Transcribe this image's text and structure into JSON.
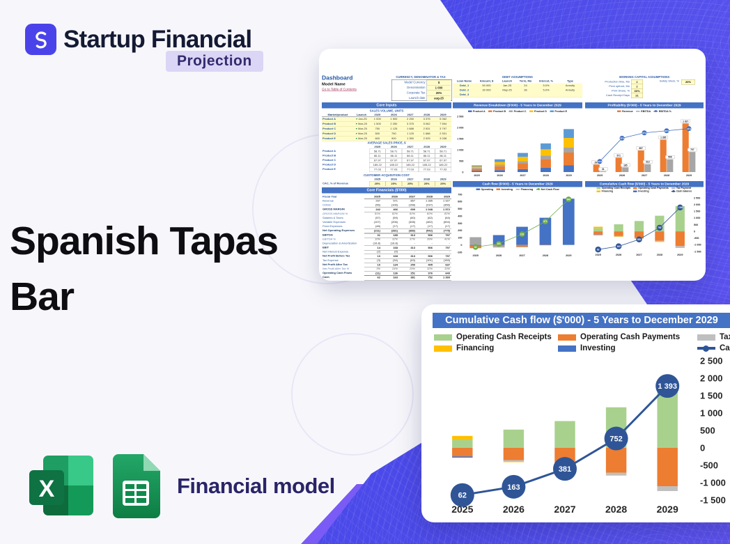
{
  "brand": {
    "name": "Startup Financial",
    "badge": "Projection"
  },
  "hero": {
    "line1": "Spanish Tapas",
    "line2": "Bar"
  },
  "file_badge": {
    "label": "Financial model"
  },
  "colors": {
    "background_blue": "#4A49E9",
    "accent_purple": "#7A5BF5",
    "chart_header_blue": "#4472C4",
    "logo_indigo": "#4B43EA",
    "excel_green": "#107C41",
    "sheets_green": "#0F9D58",
    "badge_lavender": "#DBD5F6",
    "title_black": "#0D0D12"
  },
  "dashboard": {
    "title": "Dashboard",
    "model_name": "Model Name",
    "toc_link": "Go to Table of Contents",
    "years": [
      "2025",
      "2026",
      "2027",
      "2028",
      "2029"
    ],
    "sections": {
      "core_inputs": "Core Inputs",
      "core_financials": "Core Financials ($'000)"
    },
    "currency_box": {
      "title": "CURRENCY, DENOMINATOR & TAX",
      "rows": [
        [
          "Model Currency",
          "$"
        ],
        [
          "Denomination",
          "1 000"
        ],
        [
          "Corporate Tax",
          "20%"
        ],
        [
          "Launch date",
          "aug-25"
        ]
      ]
    },
    "debt": {
      "title": "DEBT ASSUMPTIONS",
      "headers": [
        "Loan Name",
        "Amount, $",
        "Launch",
        "Term, Mo",
        "Interest, %",
        "Type"
      ],
      "rows": [
        [
          "Debt_1",
          "50 000",
          "Jan-25",
          "24",
          "5.0%",
          "Annuity"
        ],
        [
          "Debt_2",
          "30 000",
          "May-25",
          "36",
          "5.0%",
          "Annuity"
        ],
        [
          "Debt_3",
          "",
          "",
          "",
          "",
          ""
        ]
      ]
    },
    "working_capital": {
      "title": "WORKING CAPITAL ASSUMPTIONS",
      "side_label": "Safety Stock, %",
      "side_value": "20%",
      "rows": [
        [
          "Production time, Mo",
          "2"
        ],
        [
          "Prmt upfront, Mo",
          "2"
        ],
        [
          "Prmt Share, %",
          "30%"
        ],
        [
          "Cash Receipt Days",
          "21"
        ]
      ]
    },
    "sales_volume": {
      "title": "SALES VOLUME, UNITS",
      "col1": "Market/product",
      "col2": "Launch",
      "rows": [
        {
          "label": "Product A",
          "launch": "Jan-25",
          "values": [
            "1 000",
            "1 500",
            "2 250",
            "3 375",
            "5 062"
          ]
        },
        {
          "label": "Product B",
          "launch": "Mar-25",
          "values": [
            "1 500",
            "2 250",
            "3 375",
            "5 062",
            "7 594"
          ]
        },
        {
          "label": "Product C",
          "launch": "Mar-25",
          "values": [
            "750",
            "1 125",
            "1 688",
            "2 531",
            "3 797"
          ]
        },
        {
          "label": "Product D",
          "launch": "Mar-25",
          "values": [
            "500",
            "750",
            "1 125",
            "1 688",
            "2 531"
          ]
        },
        {
          "label": "Product E",
          "launch": "Mar-25",
          "values": [
            "600",
            "900",
            "1 350",
            "2 025",
            "3 038"
          ]
        }
      ]
    },
    "avg_price": {
      "title": "AVERAGE SALES PRICE, $",
      "rows": [
        {
          "label": "Product A",
          "values": [
            "58.71",
            "58.71",
            "58.71",
            "58.71",
            "58.71"
          ]
        },
        {
          "label": "Product B",
          "values": [
            "86.11",
            "86.11",
            "86.11",
            "86.11",
            "86.11"
          ]
        },
        {
          "label": "Product C",
          "values": [
            "67.97",
            "67.97",
            "67.97",
            "67.97",
            "67.97"
          ]
        },
        {
          "label": "Product D",
          "values": [
            "185.22",
            "185.22",
            "185.22",
            "185.22",
            "185.22"
          ]
        },
        {
          "label": "Product E",
          "values": [
            "77.03",
            "77.03",
            "77.03",
            "77.03",
            "77.03"
          ]
        }
      ]
    },
    "cac": {
      "title": "CUSTOMER ACQUISITION COST",
      "label": "CAC, % of Revenue",
      "values": [
        "25%",
        "25%",
        "25%",
        "25%",
        "25%"
      ]
    },
    "core_financials": {
      "fiscal_label": "Fiscal Year",
      "rows": [
        {
          "l": "Revenue",
          "v": [
            "297",
            "571",
            "857",
            "1 285",
            "1 927"
          ],
          "c": ""
        },
        {
          "l": "COGS",
          "v": [
            "(56)",
            "(106)",
            "(158)",
            "(237)",
            "(356)"
          ],
          "c": ""
        },
        {
          "l": "GROSS MARGIN",
          "v": [
            "242",
            "466",
            "699",
            "1 048",
            "1 572"
          ],
          "c": "tot"
        },
        {
          "l": "GROSS MARGIN %",
          "v": [
            "81%",
            "82%",
            "82%",
            "82%",
            "82%"
          ],
          "c": "pct"
        },
        {
          "l": "Salaries & Taxes",
          "v": [
            "(57)",
            "(59)",
            "(60)",
            "(62)",
            "(64)"
          ],
          "c": ""
        },
        {
          "l": "Variable Expenses",
          "v": [
            "(107)",
            "(206)",
            "(308)",
            "(462)",
            "(694)"
          ],
          "c": ""
        },
        {
          "l": "Fixed Expenses",
          "v": [
            "(48)",
            "(17)",
            "(17)",
            "(17)",
            "(17)"
          ],
          "c": ""
        },
        {
          "l": "Net Operating Expenses",
          "v": [
            "(211)",
            "(281)",
            "(386)",
            "(542)",
            "(775)"
          ],
          "c": "tot"
        },
        {
          "l": "EBITDA",
          "v": [
            "31",
            "185",
            "313",
            "506",
            "797"
          ],
          "c": "tot"
        },
        {
          "l": "EBITDA %",
          "v": [
            "10%",
            "32%",
            "37%",
            "39%",
            "41%"
          ],
          "c": "pct"
        },
        {
          "l": "Depreciation & Amortization",
          "v": [
            "(16.8)",
            "(16.8)",
            "-",
            "-",
            "-"
          ],
          "c": ""
        },
        {
          "l": "EBIT",
          "v": [
            "14",
            "168",
            "313",
            "506",
            "797"
          ],
          "c": "tot"
        },
        {
          "l": "Net Interest Expense",
          "v": [
            "(2)",
            "(0)",
            "-",
            "-",
            "-"
          ],
          "c": ""
        },
        {
          "l": "Net Profit Before Tax",
          "v": [
            "13",
            "168",
            "313",
            "506",
            "797"
          ],
          "c": "tot"
        },
        {
          "l": "Tax Expense",
          "v": [
            "(3)",
            "(34)",
            "(63)",
            "(101)",
            "(159)"
          ],
          "c": ""
        },
        {
          "l": "Net Profit After Tax",
          "v": [
            "10",
            "134",
            "250",
            "405",
            "637"
          ],
          "c": "tot"
        },
        {
          "l": "Net Profit After Tax %",
          "v": [
            "3%",
            "24%",
            "29%",
            "32%",
            "33%"
          ],
          "c": "pct"
        },
        {
          "l": "Operating Cash Flows",
          "v": [
            "(11)",
            "136",
            "251",
            "376",
            "640"
          ],
          "c": "tot"
        },
        {
          "l": "Cash",
          "v": [
            "62",
            "163",
            "381",
            "752",
            "1 393"
          ],
          "c": "tot"
        }
      ]
    }
  },
  "chart_data": [
    {
      "name": "revenue_breakdown",
      "type": "bar",
      "title": "Revenue Breakdown ($'000) - 5 Years to December 2029",
      "categories": [
        "2025",
        "2026",
        "2027",
        "2028",
        "2029"
      ],
      "y_min": 0,
      "y_max": 2500,
      "y_step": 500,
      "y_ticks": [
        "2 500",
        "2 000",
        "1 500",
        "1 000",
        "500",
        "0"
      ],
      "legend": [
        {
          "label": "Product A",
          "color": "#4472C4",
          "kind": "box"
        },
        {
          "label": "Product B",
          "color": "#ED7D31",
          "kind": "box"
        },
        {
          "label": "Product C",
          "color": "#A5A5A5",
          "kind": "box"
        },
        {
          "label": "Product D",
          "color": "#FFC000",
          "kind": "box"
        },
        {
          "label": "Product E",
          "color": "#5B9BD5",
          "kind": "box"
        }
      ],
      "series": [
        {
          "name": "Product A",
          "type": "bar",
          "color": "#4472C4",
          "values": [
            59,
            88,
            132,
            198,
            297
          ]
        },
        {
          "name": "Product B",
          "type": "bar",
          "color": "#ED7D31",
          "values": [
            89,
            171,
            257,
            385,
            578
          ]
        },
        {
          "name": "Product C",
          "type": "bar",
          "color": "#A5A5A5",
          "values": [
            36,
            69,
            103,
            154,
            231
          ]
        },
        {
          "name": "Product D",
          "type": "bar",
          "color": "#FFC000",
          "values": [
            65,
            126,
            189,
            283,
            424
          ]
        },
        {
          "name": "Product E",
          "type": "bar",
          "color": "#5B9BD5",
          "values": [
            48,
            117,
            176,
            265,
            397
          ]
        }
      ]
    },
    {
      "name": "profitability",
      "type": "bar",
      "title": "Profitability ($'000) - 5 Years to December 2029",
      "categories": [
        "2025",
        "2026",
        "2027",
        "2028",
        "2029"
      ],
      "y_min": 0,
      "y_max": 2100,
      "y_step": 500,
      "legend": [
        {
          "label": "Revenue",
          "color": "#ED7D31",
          "kind": "box"
        },
        {
          "label": "EBITDA",
          "color": "#A6A6A6",
          "kind": "line"
        },
        {
          "label": "EBITDA %",
          "color": "#4472C4",
          "kind": "linedot"
        }
      ],
      "series": [
        {
          "name": "Revenue",
          "type": "bar",
          "color": "#ED7D31",
          "values": [
            297,
            571,
            857,
            1285,
            1927
          ],
          "labels": [
            "297",
            "571",
            "857",
            "1 285",
            "1 927"
          ]
        },
        {
          "name": "EBITDA",
          "type": "bar",
          "color": "#A6A6A6",
          "values": [
            31,
            185,
            313,
            506,
            797
          ],
          "labels": [
            "31",
            "185",
            "313",
            "506",
            "797"
          ]
        },
        {
          "name": "EBITDA %",
          "type": "line",
          "color": "#4472C4",
          "values": [
            10,
            32,
            37,
            39,
            41
          ],
          "y2_min": 0,
          "y2_max": 50,
          "marker_color": "#4472C4",
          "marker_labels": [
            "10%",
            "32%",
            "37%",
            "39%",
            "41%"
          ]
        }
      ]
    },
    {
      "name": "cash_flow",
      "type": "bar",
      "title": "Cash flow ($'000) - 5 Years to December 2029",
      "categories": [
        "2025",
        "2026",
        "2027",
        "2028",
        "2029"
      ],
      "y_min": -100,
      "y_max": 700,
      "y_step": 100,
      "y_ticks": [
        "700",
        "600",
        "500",
        "400",
        "300",
        "200",
        "100",
        "0",
        "-100"
      ],
      "legend": [
        {
          "label": "Operating",
          "color": "#4472C4",
          "kind": "box"
        },
        {
          "label": "Investing",
          "color": "#ED7D31",
          "kind": "box"
        },
        {
          "label": "Financing",
          "color": "#A6A6A6",
          "kind": "line"
        },
        {
          "label": "Net Cash Flow",
          "color": "#70AD47",
          "kind": "linedot"
        }
      ],
      "series": [
        {
          "name": "Operating",
          "type": "bar",
          "color": "#4472C4",
          "values": [
            -11,
            136,
            251,
            376,
            640
          ]
        },
        {
          "name": "Investing",
          "type": "bar",
          "color": "#ED7D31",
          "values": [
            -34,
            -16,
            -24,
            -5,
            0
          ]
        },
        {
          "name": "Financing",
          "type": "bar",
          "color": "#A6A6A6",
          "values": [
            107,
            -19,
            -9,
            0,
            0
          ]
        },
        {
          "name": "Net Cash Flow",
          "type": "line",
          "color": "#70AD47",
          "values": [
            62,
            101,
            218,
            371,
            640
          ],
          "y2_min": 0,
          "y2_max": 700,
          "marker_color": "#70AD47",
          "marker_labels": [
            "62",
            "101",
            "218",
            "371",
            "640"
          ]
        }
      ]
    },
    {
      "name": "cumulative_cash_flow",
      "type": "bar",
      "title": "Cumulative Cash flow ($'000) - 5 Years to December 2029",
      "categories": [
        "2025",
        "2026",
        "2027",
        "2028",
        "2029"
      ],
      "y_min": -1500,
      "y_max": 2500,
      "y_step": 500,
      "y_ticks": [
        "2 500",
        "2 000",
        "1 500",
        "1 000",
        "500",
        "0",
        "-500",
        "-1 000",
        "-1 500"
      ],
      "legend": [
        {
          "label": "Operating Cash Receipts",
          "color": "#A9D18E",
          "kind": "box"
        },
        {
          "label": "Operating Cash Payments",
          "color": "#ED7D31",
          "kind": "box"
        },
        {
          "label": "Tax Payment",
          "color": "#BFBFBF",
          "kind": "box"
        },
        {
          "label": "Financing",
          "color": "#FFC000",
          "kind": "box"
        },
        {
          "label": "Investing",
          "color": "#4472C4",
          "kind": "box"
        },
        {
          "label": "Cash balance",
          "color": "#2F5597",
          "kind": "linedot"
        }
      ],
      "series": [
        {
          "name": "Operating Cash Receipts",
          "type": "bar",
          "color": "#A9D18E",
          "values": [
            230,
            525,
            770,
            1165,
            1880
          ]
        },
        {
          "name": "Operating Cash Payments",
          "type": "bar",
          "color": "#ED7D31",
          "values": [
            -245,
            -350,
            -500,
            -710,
            -1100
          ]
        },
        {
          "name": "Tax Payment",
          "type": "bar",
          "color": "#BFBFBF",
          "values": [
            0,
            -33,
            -40,
            -70,
            -140
          ]
        },
        {
          "name": "Financing",
          "type": "bar",
          "color": "#FFC000",
          "values": [
            113,
            -26,
            -13,
            -15,
            0
          ]
        },
        {
          "name": "Investing",
          "type": "bar",
          "color": "#4472C4",
          "values": [
            -35,
            0,
            0,
            0,
            0
          ]
        },
        {
          "name": "Cash balance",
          "type": "line",
          "color": "#2F5597",
          "values": [
            62,
            163,
            381,
            752,
            1393
          ],
          "y2_min": 0,
          "y2_max": 1700,
          "marker_color": "#2F5597",
          "marker_labels": [
            "62",
            "163",
            "381",
            "752",
            "1 393"
          ]
        }
      ]
    }
  ]
}
